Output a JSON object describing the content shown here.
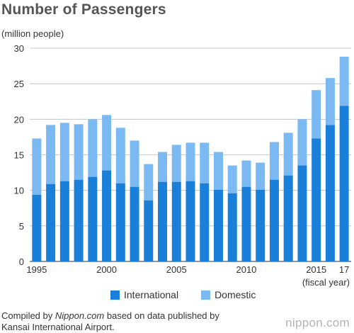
{
  "chart_data": {
    "type": "bar",
    "stacked": true,
    "title": "Number of Passengers",
    "ylabel": "(million people)",
    "xlabel": "(fiscal year)",
    "ylim": [
      0,
      30
    ],
    "yticks": [
      0,
      5,
      10,
      15,
      20,
      25,
      30
    ],
    "categories": [
      "1995",
      "1996",
      "1997",
      "1998",
      "1999",
      "2000",
      "2001",
      "2002",
      "2003",
      "2004",
      "2005",
      "2006",
      "2007",
      "2008",
      "2009",
      "2010",
      "2011",
      "2012",
      "2013",
      "2014",
      "2015",
      "2016",
      "2017"
    ],
    "xtick_labels": [
      {
        "category": "1995",
        "label": "1995"
      },
      {
        "category": "2000",
        "label": "2000"
      },
      {
        "category": "2005",
        "label": "2005"
      },
      {
        "category": "2010",
        "label": "2010"
      },
      {
        "category": "2015",
        "label": "2015"
      },
      {
        "category": "2017",
        "label": "17"
      }
    ],
    "series": [
      {
        "name": "International",
        "color": "#1a7fd8",
        "values": [
          9.4,
          10.9,
          11.3,
          11.5,
          11.9,
          12.8,
          11.0,
          10.5,
          8.6,
          11.2,
          11.2,
          11.3,
          11.0,
          10.1,
          9.6,
          10.5,
          10.1,
          11.5,
          12.1,
          13.5,
          17.3,
          19.2,
          21.9
        ]
      },
      {
        "name": "Domestic",
        "color": "#7bb9f2",
        "values": [
          7.9,
          8.3,
          8.2,
          7.8,
          8.1,
          7.8,
          7.8,
          6.5,
          5.1,
          4.2,
          5.2,
          5.4,
          5.7,
          5.3,
          3.9,
          3.7,
          3.8,
          5.3,
          6.0,
          6.5,
          6.8,
          6.6,
          6.9
        ]
      }
    ],
    "grid": false,
    "legend_position": "bottom"
  },
  "source": {
    "prefix": "Compiled by ",
    "site": "Nippon.com",
    "suffix": " based on data published by",
    "line2": "Kansai International Airport."
  },
  "logo": {
    "text": "nippon.com"
  }
}
